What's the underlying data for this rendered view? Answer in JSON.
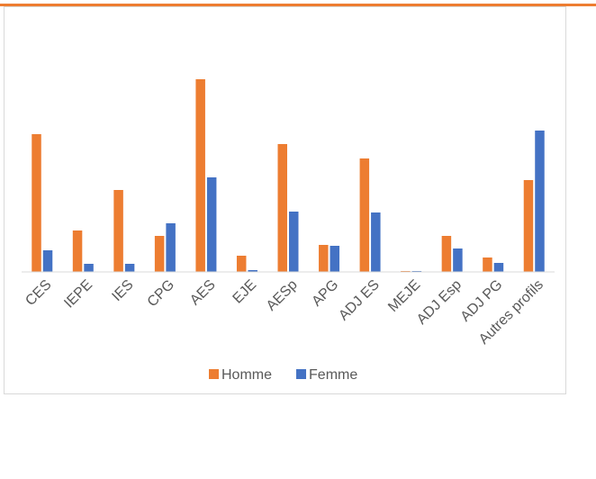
{
  "chart_data": {
    "type": "bar",
    "categories": [
      "CES",
      "IEPE",
      "IES",
      "CPG",
      "AES",
      "EJE",
      "AESp",
      "APG",
      "ADJ ES",
      "MEJE",
      "ADJ Esp",
      "ADJ PG",
      "Autres profils"
    ],
    "series": [
      {
        "name": "Homme",
        "color": "#ed7d31",
        "values": [
          153,
          46,
          91,
          40,
          214,
          18,
          142,
          30,
          126,
          1,
          40,
          16,
          102
        ]
      },
      {
        "name": "Femme",
        "color": "#4472c4",
        "values": [
          24,
          9,
          9,
          54,
          105,
          2,
          67,
          29,
          66,
          1,
          26,
          10,
          157
        ]
      }
    ],
    "ylim": [
      0,
      220
    ],
    "legend": "bottom"
  }
}
